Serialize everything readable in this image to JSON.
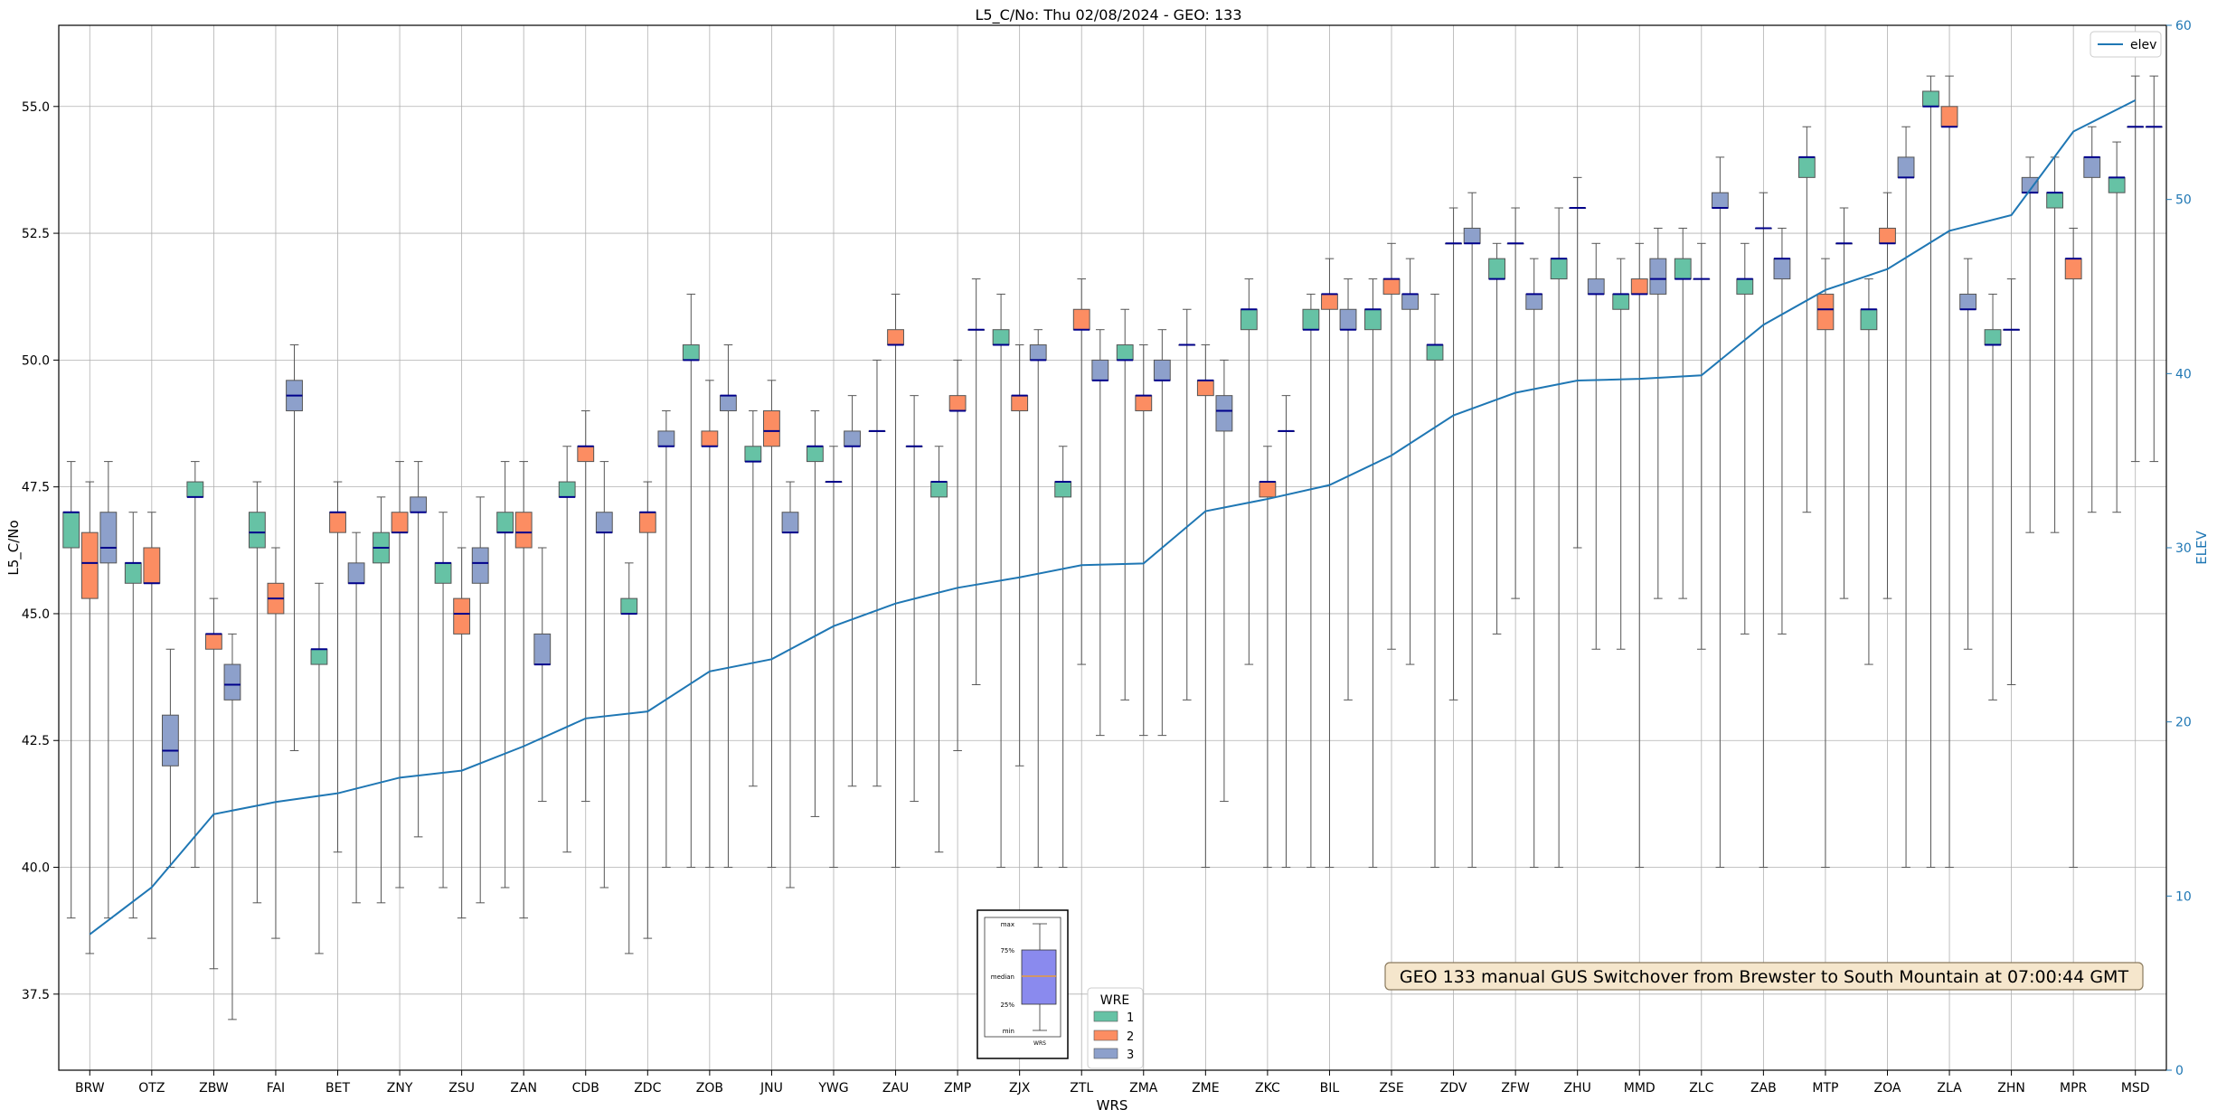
{
  "chart_data": {
    "type": "box",
    "title": "L5_C/No: Thu 02/08/2024 - GEO: 133",
    "xlabel": "WRS",
    "ylabel": "L5_C/No",
    "ylabel_right": "ELEV",
    "ylim": [
      36.0,
      56.6
    ],
    "ylim_right": [
      0,
      60
    ],
    "yticks": [
      "37.5",
      "40.0",
      "42.5",
      "45.0",
      "47.5",
      "50.0",
      "52.5",
      "55.0"
    ],
    "yticks_right": [
      "0",
      "10",
      "20",
      "30",
      "40",
      "50",
      "60"
    ],
    "grid": true,
    "categories": [
      "BRW",
      "OTZ",
      "ZBW",
      "FAI",
      "BET",
      "ZNY",
      "ZSU",
      "ZAN",
      "CDB",
      "ZDC",
      "ZOB",
      "JNU",
      "YWG",
      "ZAU",
      "ZMP",
      "ZJX",
      "ZTL",
      "ZMA",
      "ZME",
      "ZKC",
      "BIL",
      "ZSE",
      "ZDV",
      "ZFW",
      "ZHU",
      "MMD",
      "ZLC",
      "ZAB",
      "MTP",
      "ZOA",
      "ZLA",
      "ZHN",
      "MPR",
      "MSD"
    ],
    "wre_colors": {
      "1": "#66c2a5",
      "2": "#fc8d62",
      "3": "#8da0cb"
    },
    "median_color": "#00008b",
    "boxes": [
      {
        "station": "BRW",
        "wre": "1",
        "min": 39.0,
        "q1": 46.3,
        "median": 47.0,
        "q3": 47.0,
        "max": 48.0
      },
      {
        "station": "BRW",
        "wre": "2",
        "min": 38.3,
        "q1": 45.3,
        "median": 46.0,
        "q3": 46.6,
        "max": 47.6
      },
      {
        "station": "BRW",
        "wre": "3",
        "min": 39.0,
        "q1": 46.0,
        "median": 46.3,
        "q3": 47.0,
        "max": 48.0
      },
      {
        "station": "OTZ",
        "wre": "1",
        "min": 39.0,
        "q1": 45.6,
        "median": 46.0,
        "q3": 46.0,
        "max": 47.0
      },
      {
        "station": "OTZ",
        "wre": "2",
        "min": 38.6,
        "q1": 45.6,
        "median": 45.6,
        "q3": 46.3,
        "max": 47.0
      },
      {
        "station": "OTZ",
        "wre": "3",
        "min": 40.0,
        "q1": 42.0,
        "median": 42.3,
        "q3": 43.0,
        "max": 44.3
      },
      {
        "station": "ZBW",
        "wre": "1",
        "min": 40.0,
        "q1": 47.3,
        "median": 47.3,
        "q3": 47.6,
        "max": 48.0
      },
      {
        "station": "ZBW",
        "wre": "2",
        "min": 38.0,
        "q1": 44.3,
        "median": 44.6,
        "q3": 44.6,
        "max": 45.3
      },
      {
        "station": "ZBW",
        "wre": "3",
        "min": 37.0,
        "q1": 43.3,
        "median": 43.6,
        "q3": 44.0,
        "max": 44.6
      },
      {
        "station": "FAI",
        "wre": "1",
        "min": 39.3,
        "q1": 46.3,
        "median": 46.6,
        "q3": 47.0,
        "max": 47.6
      },
      {
        "station": "FAI",
        "wre": "2",
        "min": 38.6,
        "q1": 45.0,
        "median": 45.3,
        "q3": 45.6,
        "max": 46.3
      },
      {
        "station": "FAI",
        "wre": "3",
        "min": 42.3,
        "q1": 49.0,
        "median": 49.3,
        "q3": 49.6,
        "max": 50.3
      },
      {
        "station": "BET",
        "wre": "1",
        "min": 38.3,
        "q1": 44.0,
        "median": 44.3,
        "q3": 44.3,
        "max": 45.6
      },
      {
        "station": "BET",
        "wre": "2",
        "min": 40.3,
        "q1": 46.6,
        "median": 47.0,
        "q3": 47.0,
        "max": 47.6
      },
      {
        "station": "BET",
        "wre": "3",
        "min": 39.3,
        "q1": 45.6,
        "median": 45.6,
        "q3": 46.0,
        "max": 46.6
      },
      {
        "station": "ZNY",
        "wre": "1",
        "min": 39.3,
        "q1": 46.0,
        "median": 46.3,
        "q3": 46.6,
        "max": 47.3
      },
      {
        "station": "ZNY",
        "wre": "2",
        "min": 39.6,
        "q1": 46.6,
        "median": 46.6,
        "q3": 47.0,
        "max": 48.0
      },
      {
        "station": "ZNY",
        "wre": "3",
        "min": 40.6,
        "q1": 47.0,
        "median": 47.0,
        "q3": 47.3,
        "max": 48.0
      },
      {
        "station": "ZSU",
        "wre": "1",
        "min": 39.6,
        "q1": 45.6,
        "median": 46.0,
        "q3": 46.0,
        "max": 47.0
      },
      {
        "station": "ZSU",
        "wre": "2",
        "min": 39.0,
        "q1": 44.6,
        "median": 45.0,
        "q3": 45.3,
        "max": 46.3
      },
      {
        "station": "ZSU",
        "wre": "3",
        "min": 39.3,
        "q1": 45.6,
        "median": 46.0,
        "q3": 46.3,
        "max": 47.3
      },
      {
        "station": "ZAN",
        "wre": "1",
        "min": 39.6,
        "q1": 46.6,
        "median": 46.6,
        "q3": 47.0,
        "max": 48.0
      },
      {
        "station": "ZAN",
        "wre": "2",
        "min": 39.0,
        "q1": 46.3,
        "median": 46.6,
        "q3": 47.0,
        "max": 48.0
      },
      {
        "station": "ZAN",
        "wre": "3",
        "min": 41.3,
        "q1": 44.0,
        "median": 44.0,
        "q3": 44.6,
        "max": 46.3
      },
      {
        "station": "CDB",
        "wre": "1",
        "min": 40.3,
        "q1": 47.3,
        "median": 47.3,
        "q3": 47.6,
        "max": 48.3
      },
      {
        "station": "CDB",
        "wre": "2",
        "min": 41.3,
        "q1": 48.0,
        "median": 48.3,
        "q3": 48.3,
        "max": 49.0
      },
      {
        "station": "CDB",
        "wre": "3",
        "min": 39.6,
        "q1": 46.6,
        "median": 46.6,
        "q3": 47.0,
        "max": 48.0
      },
      {
        "station": "ZDC",
        "wre": "1",
        "min": 38.3,
        "q1": 45.0,
        "median": 45.0,
        "q3": 45.3,
        "max": 46.0
      },
      {
        "station": "ZDC",
        "wre": "2",
        "min": 38.6,
        "q1": 46.6,
        "median": 47.0,
        "q3": 47.0,
        "max": 47.6
      },
      {
        "station": "ZDC",
        "wre": "3",
        "min": 40.0,
        "q1": 48.3,
        "median": 48.3,
        "q3": 48.6,
        "max": 49.0
      },
      {
        "station": "ZOB",
        "wre": "1",
        "min": 40.0,
        "q1": 50.0,
        "median": 50.0,
        "q3": 50.3,
        "max": 51.3
      },
      {
        "station": "ZOB",
        "wre": "2",
        "min": 40.0,
        "q1": 48.3,
        "median": 48.3,
        "q3": 48.6,
        "max": 49.6
      },
      {
        "station": "ZOB",
        "wre": "3",
        "min": 40.0,
        "q1": 49.0,
        "median": 49.3,
        "q3": 49.3,
        "max": 50.3
      },
      {
        "station": "JNU",
        "wre": "1",
        "min": 41.6,
        "q1": 48.0,
        "median": 48.0,
        "q3": 48.3,
        "max": 49.0
      },
      {
        "station": "JNU",
        "wre": "2",
        "min": 40.0,
        "q1": 48.3,
        "median": 48.6,
        "q3": 49.0,
        "max": 49.6
      },
      {
        "station": "JNU",
        "wre": "3",
        "min": 39.6,
        "q1": 46.6,
        "median": 46.6,
        "q3": 47.0,
        "max": 47.6
      },
      {
        "station": "YWG",
        "wre": "1",
        "min": 41.0,
        "q1": 48.0,
        "median": 48.3,
        "q3": 48.3,
        "max": 49.0
      },
      {
        "station": "YWG",
        "wre": "2",
        "min": 40.0,
        "q1": 47.6,
        "median": 47.6,
        "q3": 47.6,
        "max": 48.3
      },
      {
        "station": "YWG",
        "wre": "3",
        "min": 41.6,
        "q1": 48.3,
        "median": 48.3,
        "q3": 48.6,
        "max": 49.3
      },
      {
        "station": "ZAU",
        "wre": "1",
        "min": 41.6,
        "q1": 48.6,
        "median": 48.6,
        "q3": 48.6,
        "max": 50.0
      },
      {
        "station": "ZAU",
        "wre": "2",
        "min": 40.0,
        "q1": 50.3,
        "median": 50.3,
        "q3": 50.6,
        "max": 51.3
      },
      {
        "station": "ZAU",
        "wre": "3",
        "min": 41.3,
        "q1": 48.3,
        "median": 48.3,
        "q3": 48.3,
        "max": 49.3
      },
      {
        "station": "ZMP",
        "wre": "1",
        "min": 40.3,
        "q1": 47.3,
        "median": 47.6,
        "q3": 47.6,
        "max": 48.3
      },
      {
        "station": "ZMP",
        "wre": "2",
        "min": 42.3,
        "q1": 49.0,
        "median": 49.0,
        "q3": 49.3,
        "max": 50.0
      },
      {
        "station": "ZMP",
        "wre": "3",
        "min": 43.6,
        "q1": 50.6,
        "median": 50.6,
        "q3": 50.6,
        "max": 51.6
      },
      {
        "station": "ZJX",
        "wre": "1",
        "min": 40.0,
        "q1": 50.3,
        "median": 50.3,
        "q3": 50.6,
        "max": 51.3
      },
      {
        "station": "ZJX",
        "wre": "2",
        "min": 42.0,
        "q1": 49.0,
        "median": 49.3,
        "q3": 49.3,
        "max": 50.3
      },
      {
        "station": "ZJX",
        "wre": "3",
        "min": 40.0,
        "q1": 50.0,
        "median": 50.0,
        "q3": 50.3,
        "max": 50.6
      },
      {
        "station": "ZTL",
        "wre": "1",
        "min": 40.0,
        "q1": 47.3,
        "median": 47.6,
        "q3": 47.6,
        "max": 48.3
      },
      {
        "station": "ZTL",
        "wre": "2",
        "min": 44.0,
        "q1": 50.6,
        "median": 50.6,
        "q3": 51.0,
        "max": 51.6
      },
      {
        "station": "ZTL",
        "wre": "3",
        "min": 42.6,
        "q1": 49.6,
        "median": 49.6,
        "q3": 50.0,
        "max": 50.6
      },
      {
        "station": "ZMA",
        "wre": "1",
        "min": 43.3,
        "q1": 50.0,
        "median": 50.0,
        "q3": 50.3,
        "max": 51.0
      },
      {
        "station": "ZMA",
        "wre": "2",
        "min": 42.6,
        "q1": 49.0,
        "median": 49.3,
        "q3": 49.3,
        "max": 50.3
      },
      {
        "station": "ZMA",
        "wre": "3",
        "min": 42.6,
        "q1": 49.6,
        "median": 49.6,
        "q3": 50.0,
        "max": 50.6
      },
      {
        "station": "ZME",
        "wre": "1",
        "min": 43.3,
        "q1": 50.3,
        "median": 50.3,
        "q3": 50.3,
        "max": 51.0
      },
      {
        "station": "ZME",
        "wre": "2",
        "min": 40.0,
        "q1": 49.3,
        "median": 49.6,
        "q3": 49.6,
        "max": 50.3
      },
      {
        "station": "ZME",
        "wre": "3",
        "min": 41.3,
        "q1": 48.6,
        "median": 49.0,
        "q3": 49.3,
        "max": 50.0
      },
      {
        "station": "ZKC",
        "wre": "1",
        "min": 44.0,
        "q1": 50.6,
        "median": 51.0,
        "q3": 51.0,
        "max": 51.6
      },
      {
        "station": "ZKC",
        "wre": "2",
        "min": 40.0,
        "q1": 47.3,
        "median": 47.6,
        "q3": 47.6,
        "max": 48.3
      },
      {
        "station": "ZKC",
        "wre": "3",
        "min": 40.0,
        "q1": 48.6,
        "median": 48.6,
        "q3": 48.6,
        "max": 49.3
      },
      {
        "station": "BIL",
        "wre": "1",
        "min": 40.0,
        "q1": 50.6,
        "median": 50.6,
        "q3": 51.0,
        "max": 51.3
      },
      {
        "station": "BIL",
        "wre": "2",
        "min": 40.0,
        "q1": 51.0,
        "median": 51.3,
        "q3": 51.3,
        "max": 52.0
      },
      {
        "station": "BIL",
        "wre": "3",
        "min": 43.3,
        "q1": 50.6,
        "median": 50.6,
        "q3": 51.0,
        "max": 51.6
      },
      {
        "station": "ZSE",
        "wre": "1",
        "min": 40.0,
        "q1": 50.6,
        "median": 51.0,
        "q3": 51.0,
        "max": 51.6
      },
      {
        "station": "ZSE",
        "wre": "2",
        "min": 44.3,
        "q1": 51.3,
        "median": 51.6,
        "q3": 51.6,
        "max": 52.3
      },
      {
        "station": "ZSE",
        "wre": "3",
        "min": 44.0,
        "q1": 51.0,
        "median": 51.3,
        "q3": 51.3,
        "max": 52.0
      },
      {
        "station": "ZDV",
        "wre": "1",
        "min": 40.0,
        "q1": 50.0,
        "median": 50.3,
        "q3": 50.3,
        "max": 51.3
      },
      {
        "station": "ZDV",
        "wre": "2",
        "min": 43.3,
        "q1": 52.3,
        "median": 52.3,
        "q3": 52.3,
        "max": 53.0
      },
      {
        "station": "ZDV",
        "wre": "3",
        "min": 40.0,
        "q1": 52.3,
        "median": 52.3,
        "q3": 52.6,
        "max": 53.3
      },
      {
        "station": "ZFW",
        "wre": "1",
        "min": 44.6,
        "q1": 51.6,
        "median": 51.6,
        "q3": 52.0,
        "max": 52.3
      },
      {
        "station": "ZFW",
        "wre": "2",
        "min": 45.3,
        "q1": 52.3,
        "median": 52.3,
        "q3": 52.3,
        "max": 53.0
      },
      {
        "station": "ZFW",
        "wre": "3",
        "min": 40.0,
        "q1": 51.0,
        "median": 51.3,
        "q3": 51.3,
        "max": 52.0
      },
      {
        "station": "ZHU",
        "wre": "1",
        "min": 40.0,
        "q1": 51.6,
        "median": 52.0,
        "q3": 52.0,
        "max": 53.0
      },
      {
        "station": "ZHU",
        "wre": "2",
        "min": 46.3,
        "q1": 53.0,
        "median": 53.0,
        "q3": 53.0,
        "max": 53.6
      },
      {
        "station": "ZHU",
        "wre": "3",
        "min": 44.3,
        "q1": 51.3,
        "median": 51.3,
        "q3": 51.6,
        "max": 52.3
      },
      {
        "station": "MMD",
        "wre": "1",
        "min": 44.3,
        "q1": 51.0,
        "median": 51.3,
        "q3": 51.3,
        "max": 52.0
      },
      {
        "station": "MMD",
        "wre": "2",
        "min": 40.0,
        "q1": 51.3,
        "median": 51.3,
        "q3": 51.6,
        "max": 52.3
      },
      {
        "station": "MMD",
        "wre": "3",
        "min": 45.3,
        "q1": 51.3,
        "median": 51.6,
        "q3": 52.0,
        "max": 52.6
      },
      {
        "station": "ZLC",
        "wre": "1",
        "min": 45.3,
        "q1": 51.6,
        "median": 51.6,
        "q3": 52.0,
        "max": 52.6
      },
      {
        "station": "ZLC",
        "wre": "2",
        "min": 44.3,
        "q1": 51.6,
        "median": 51.6,
        "q3": 51.6,
        "max": 52.3
      },
      {
        "station": "ZLC",
        "wre": "3",
        "min": 40.0,
        "q1": 53.0,
        "median": 53.0,
        "q3": 53.3,
        "max": 54.0
      },
      {
        "station": "ZAB",
        "wre": "1",
        "min": 44.6,
        "q1": 51.3,
        "median": 51.6,
        "q3": 51.6,
        "max": 52.3
      },
      {
        "station": "ZAB",
        "wre": "2",
        "min": 40.0,
        "q1": 52.6,
        "median": 52.6,
        "q3": 52.6,
        "max": 53.3
      },
      {
        "station": "ZAB",
        "wre": "3",
        "min": 44.6,
        "q1": 51.6,
        "median": 52.0,
        "q3": 52.0,
        "max": 52.6
      },
      {
        "station": "MTP",
        "wre": "1",
        "min": 47.0,
        "q1": 53.6,
        "median": 54.0,
        "q3": 54.0,
        "max": 54.6
      },
      {
        "station": "MTP",
        "wre": "2",
        "min": 40.0,
        "q1": 50.6,
        "median": 51.0,
        "q3": 51.3,
        "max": 52.0
      },
      {
        "station": "MTP",
        "wre": "3",
        "min": 45.3,
        "q1": 52.3,
        "median": 52.3,
        "q3": 52.3,
        "max": 53.0
      },
      {
        "station": "ZOA",
        "wre": "1",
        "min": 44.0,
        "q1": 50.6,
        "median": 51.0,
        "q3": 51.0,
        "max": 51.6
      },
      {
        "station": "ZOA",
        "wre": "2",
        "min": 45.3,
        "q1": 52.3,
        "median": 52.3,
        "q3": 52.6,
        "max": 53.3
      },
      {
        "station": "ZOA",
        "wre": "3",
        "min": 40.0,
        "q1": 53.6,
        "median": 53.6,
        "q3": 54.0,
        "max": 54.6
      },
      {
        "station": "ZLA",
        "wre": "1",
        "min": 40.0,
        "q1": 55.0,
        "median": 55.0,
        "q3": 55.3,
        "max": 55.6
      },
      {
        "station": "ZLA",
        "wre": "2",
        "min": 40.0,
        "q1": 54.6,
        "median": 54.6,
        "q3": 55.0,
        "max": 55.6
      },
      {
        "station": "ZLA",
        "wre": "3",
        "min": 44.3,
        "q1": 51.0,
        "median": 51.0,
        "q3": 51.3,
        "max": 52.0
      },
      {
        "station": "ZHN",
        "wre": "1",
        "min": 43.3,
        "q1": 50.3,
        "median": 50.3,
        "q3": 50.6,
        "max": 51.3
      },
      {
        "station": "ZHN",
        "wre": "2",
        "min": 43.6,
        "q1": 50.6,
        "median": 50.6,
        "q3": 50.6,
        "max": 51.6
      },
      {
        "station": "ZHN",
        "wre": "3",
        "min": 46.6,
        "q1": 53.3,
        "median": 53.3,
        "q3": 53.6,
        "max": 54.0
      },
      {
        "station": "MPR",
        "wre": "1",
        "min": 46.6,
        "q1": 53.0,
        "median": 53.3,
        "q3": 53.3,
        "max": 54.0
      },
      {
        "station": "MPR",
        "wre": "2",
        "min": 40.0,
        "q1": 51.6,
        "median": 52.0,
        "q3": 52.0,
        "max": 52.6
      },
      {
        "station": "MPR",
        "wre": "3",
        "min": 47.0,
        "q1": 53.6,
        "median": 54.0,
        "q3": 54.0,
        "max": 54.6
      },
      {
        "station": "MSD",
        "wre": "1",
        "min": 47.0,
        "q1": 53.3,
        "median": 53.6,
        "q3": 53.6,
        "max": 54.3
      },
      {
        "station": "MSD",
        "wre": "2",
        "min": 48.0,
        "q1": 54.6,
        "median": 54.6,
        "q3": 54.6,
        "max": 55.6
      },
      {
        "station": "MSD",
        "wre": "3",
        "min": 48.0,
        "q1": 54.6,
        "median": 54.6,
        "q3": 54.6,
        "max": 55.6
      }
    ],
    "line_series": {
      "name": "elev",
      "color": "#1f77b4",
      "values": [
        7.8,
        10.5,
        14.7,
        15.4,
        15.9,
        16.8,
        17.2,
        18.6,
        20.2,
        20.6,
        22.9,
        23.6,
        25.5,
        26.8,
        27.7,
        28.3,
        29.0,
        29.1,
        32.1,
        32.8,
        33.6,
        35.3,
        37.6,
        38.9,
        39.6,
        39.7,
        39.9,
        42.8,
        44.8,
        46.0,
        48.2,
        49.1,
        53.9,
        55.7
      ]
    },
    "legend_elev": {
      "label": "elev",
      "placement": "top-right"
    },
    "legend_wre": {
      "title": "WRE",
      "entries": [
        "1",
        "2",
        "3"
      ],
      "placement": "bottom-center"
    },
    "inset_key": {
      "labels": [
        "max",
        "75%",
        "median",
        "25%",
        "min"
      ],
      "xlabel": "WRS"
    },
    "annotation": "GEO 133 manual GUS Switchover from Brewster to South Mountain at 07:00:44 GMT"
  }
}
